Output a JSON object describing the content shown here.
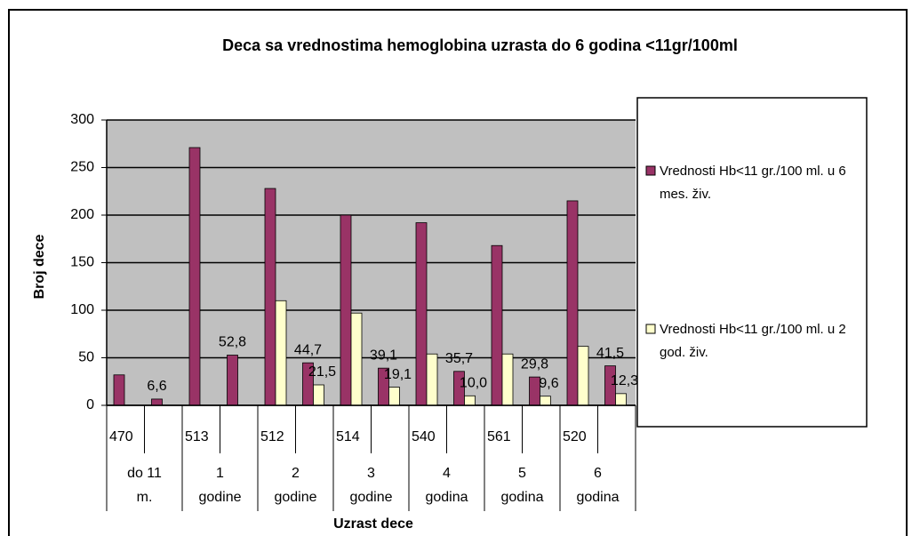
{
  "chart_data": {
    "type": "bar",
    "title": "Deca sa vrednostima hemoglobina uzrasta do 6 godina <11gr/100ml",
    "x_label": "Uzrast dece",
    "y_label": "Broj dece",
    "categories": [
      "470",
      null,
      "513",
      null,
      "512",
      null,
      "514",
      null,
      "540",
      null,
      "561",
      null,
      "520",
      null
    ],
    "group_labels": [
      [
        "do 11",
        "m."
      ],
      [
        "1",
        "godine"
      ],
      [
        "2",
        "godine"
      ],
      [
        "3",
        "godine"
      ],
      [
        "4",
        "godina"
      ],
      [
        "5",
        "godina"
      ],
      [
        "6",
        "godina"
      ]
    ],
    "series": [
      {
        "name": "Vrednosti Hb<11 gr./100 ml. u 6 mes. živ.",
        "color": "#993366",
        "values": [
          32,
          6.6,
          271,
          52.8,
          228,
          44.7,
          200,
          39.1,
          192,
          35.7,
          168,
          29.8,
          215,
          41.5
        ],
        "value_labels": [
          null,
          "6,6",
          null,
          "52,8",
          null,
          "44,7",
          null,
          "39,1",
          null,
          "35,7",
          null,
          "29,8",
          null,
          "41,5"
        ]
      },
      {
        "name": "Vrednosti Hb<11 gr./100 ml. u 2 god. živ.",
        "color": "#ffffcc",
        "values": [
          null,
          null,
          null,
          null,
          110,
          21.5,
          97,
          19.1,
          54,
          10.0,
          54,
          9.6,
          62,
          12.3
        ],
        "value_labels": [
          null,
          null,
          null,
          null,
          null,
          "21,5",
          null,
          "19,1",
          null,
          "10,0",
          null,
          "9,6",
          null,
          "12,3"
        ]
      }
    ],
    "ylim": [
      0,
      300
    ],
    "yticks": [
      0,
      50,
      100,
      150,
      200,
      250,
      300
    ],
    "grid": true,
    "legend": "right"
  }
}
